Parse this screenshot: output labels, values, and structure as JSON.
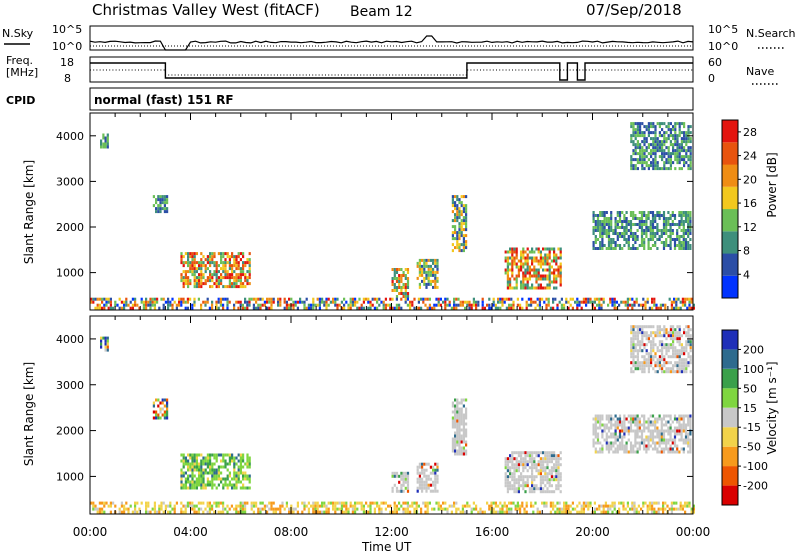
{
  "header": {
    "station": "Christmas Valley West (fitACF)",
    "beam": "Beam 12",
    "date": "07/Sep/2018"
  },
  "noise_panel": {
    "left_label": "N.Sky",
    "right_label": "N.Search",
    "left_ticks": [
      "10^5",
      "10^0"
    ],
    "right_ticks": [
      "10^5",
      "10^0"
    ]
  },
  "freq_panel": {
    "left_label_1": "Freq.",
    "left_label_2": "[MHz]",
    "right_label": "Nave",
    "left_ticks": [
      "18",
      "8"
    ],
    "right_ticks": [
      "60",
      "0"
    ]
  },
  "cpid": {
    "label": "CPID",
    "text": "normal (fast) 151 RF"
  },
  "colorbars": {
    "power_title": "Power [dB]",
    "velocity_title": "Velocity [m s⁻¹]",
    "power_colors": [
      "#0033ff",
      "#2b4ea6",
      "#3e8f7c",
      "#6bbf57",
      "#f2c81e",
      "#ef8d14",
      "#e8540e",
      "#e3140e"
    ],
    "velocity_colors": [
      "#d90000",
      "#ee5500",
      "#f79a1c",
      "#f2d34a",
      "#c8c8c8",
      "#7fd640",
      "#3aa04a",
      "#2e6b8e",
      "#1f2fb8"
    ]
  },
  "chart_data": [
    {
      "type": "heatmap",
      "title": "Power",
      "xlabel": "Time UT",
      "ylabel": "Slant Range [km]",
      "x_ticks": [
        "00:00",
        "04:00",
        "08:00",
        "12:00",
        "16:00",
        "20:00",
        "00:00"
      ],
      "y_ticks": [
        1000,
        2000,
        3000,
        4000
      ],
      "x_range_hours": [
        0,
        24
      ],
      "y_range_km": [
        180,
        4500
      ],
      "colorbar_ticks": [
        4,
        8,
        12,
        16,
        20,
        24,
        28
      ],
      "colorbar_range": [
        0,
        30
      ],
      "regions": [
        {
          "t": [
            3.6,
            6.4
          ],
          "r": [
            700,
            1450
          ],
          "level": "high"
        },
        {
          "t": [
            0.4,
            0.7
          ],
          "r": [
            3750,
            4050
          ],
          "level": "low"
        },
        {
          "t": [
            2.5,
            3.1
          ],
          "r": [
            2350,
            2700
          ],
          "level": "low"
        },
        {
          "t": [
            12.0,
            12.7
          ],
          "r": [
            450,
            1100
          ],
          "level": "high"
        },
        {
          "t": [
            13.0,
            13.8
          ],
          "r": [
            650,
            1300
          ],
          "level": "mid"
        },
        {
          "t": [
            14.4,
            15.0
          ],
          "r": [
            1500,
            2700
          ],
          "level": "mid"
        },
        {
          "t": [
            16.5,
            18.7
          ],
          "r": [
            650,
            1550
          ],
          "level": "high"
        },
        {
          "t": [
            20.0,
            23.9
          ],
          "r": [
            1500,
            2350
          ],
          "level": "low"
        },
        {
          "t": [
            21.5,
            23.9
          ],
          "r": [
            3300,
            4300
          ],
          "level": "low"
        },
        {
          "t": [
            0.0,
            24.0
          ],
          "r": [
            190,
            450
          ],
          "level": "mixed"
        }
      ]
    },
    {
      "type": "heatmap",
      "title": "Velocity",
      "xlabel": "Time UT",
      "ylabel": "Slant Range [km]",
      "x_ticks": [
        "00:00",
        "04:00",
        "08:00",
        "12:00",
        "16:00",
        "20:00",
        "00:00"
      ],
      "y_ticks": [
        1000,
        2000,
        3000,
        4000
      ],
      "x_range_hours": [
        0,
        24
      ],
      "y_range_km": [
        180,
        4500
      ],
      "colorbar_ticks": [
        -200,
        -100,
        -50,
        -15,
        15,
        50,
        100,
        200
      ],
      "regions": [
        {
          "t": [
            3.6,
            6.4
          ],
          "r": [
            750,
            1500
          ],
          "level": "positive"
        },
        {
          "t": [
            0.4,
            0.7
          ],
          "r": [
            3750,
            4050
          ],
          "level": "mixed"
        },
        {
          "t": [
            2.5,
            3.1
          ],
          "r": [
            2250,
            2700
          ],
          "level": "mixed"
        },
        {
          "t": [
            12.0,
            12.7
          ],
          "r": [
            650,
            1100
          ],
          "level": "ground"
        },
        {
          "t": [
            13.0,
            13.8
          ],
          "r": [
            650,
            1300
          ],
          "level": "ground"
        },
        {
          "t": [
            14.4,
            15.0
          ],
          "r": [
            1500,
            2700
          ],
          "level": "ground"
        },
        {
          "t": [
            16.5,
            18.7
          ],
          "r": [
            650,
            1550
          ],
          "level": "ground"
        },
        {
          "t": [
            20.0,
            23.9
          ],
          "r": [
            1500,
            2350
          ],
          "level": "ground"
        },
        {
          "t": [
            21.5,
            23.9
          ],
          "r": [
            3300,
            4300
          ],
          "level": "ground"
        },
        {
          "t": [
            0.0,
            24.0
          ],
          "r": [
            190,
            450
          ],
          "level": "negative"
        }
      ]
    }
  ]
}
